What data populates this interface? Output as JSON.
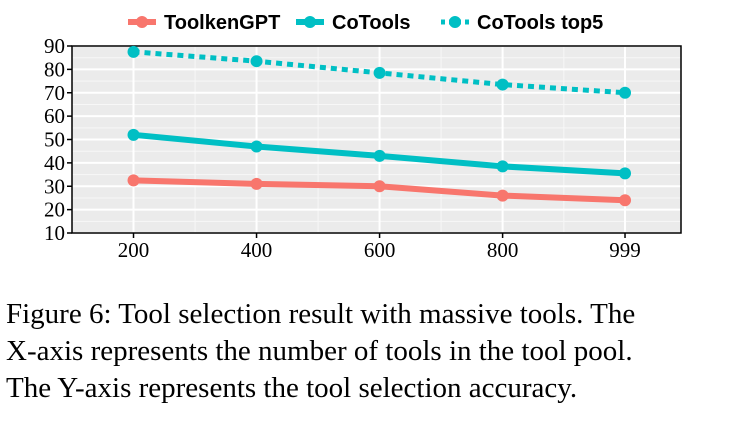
{
  "chart_data": {
    "type": "line",
    "x": [
      200,
      400,
      600,
      800,
      999
    ],
    "xlim": [
      100,
      1090
    ],
    "ylim": [
      10,
      90
    ],
    "yticks": [
      10,
      20,
      30,
      40,
      50,
      60,
      70,
      80,
      90
    ],
    "xlabel": "",
    "ylabel": "",
    "grid": true,
    "legend": "top",
    "series": [
      {
        "name": "ToolkenGPT",
        "values": [
          32.5,
          31,
          30,
          26,
          24
        ],
        "color": "#f8766d",
        "style": "solid"
      },
      {
        "name": "CoTools",
        "values": [
          52,
          47,
          43,
          38.5,
          35.5
        ],
        "color": "#00bfc4",
        "style": "solid"
      },
      {
        "name": "CoTools top5",
        "values": [
          87.5,
          83.5,
          78.5,
          73.5,
          70
        ],
        "color": "#00bfc4",
        "style": "dotted"
      }
    ]
  },
  "caption": {
    "lines": [
      "Figure 6: Tool selection result with massive tools. The",
      "X-axis represents the number of tools in the tool pool.",
      "The Y-axis represents the tool selection accuracy."
    ]
  }
}
